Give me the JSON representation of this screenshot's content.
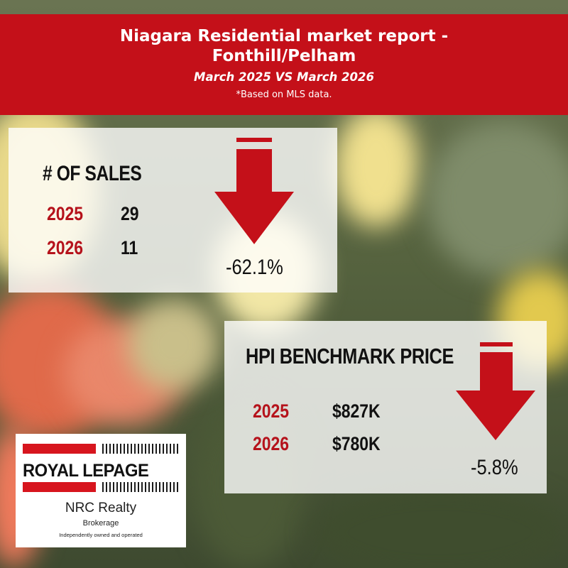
{
  "header": {
    "title_line1": "Niagara Residential market report -",
    "title_line2": "Fonthill/Pelham",
    "subtitle": "March 2025 VS March 2026",
    "note": "*Based on MLS data."
  },
  "sales": {
    "heading": "# OF SALES",
    "rows": [
      {
        "year": "2025",
        "value": "29"
      },
      {
        "year": "2026",
        "value": "11"
      }
    ],
    "change": "-62.1%",
    "direction": "down-arrow-icon"
  },
  "hpi": {
    "heading": "HPI BENCHMARK PRICE",
    "rows": [
      {
        "year": "2025",
        "value": "$827K"
      },
      {
        "year": "2026",
        "value": "$780K"
      }
    ],
    "change": "-5.8%",
    "direction": "down-arrow-icon"
  },
  "logo": {
    "brand": "ROYAL LEPAGE",
    "name": "NRC Realty",
    "sub": "Brokerage",
    "tagline": "Independently owned and operated"
  },
  "colors": {
    "header_red": "#c41019",
    "arrow_red": "#c41019",
    "year_red": "#b5121b",
    "card_bg": "rgba(255,255,255,0.80)"
  }
}
